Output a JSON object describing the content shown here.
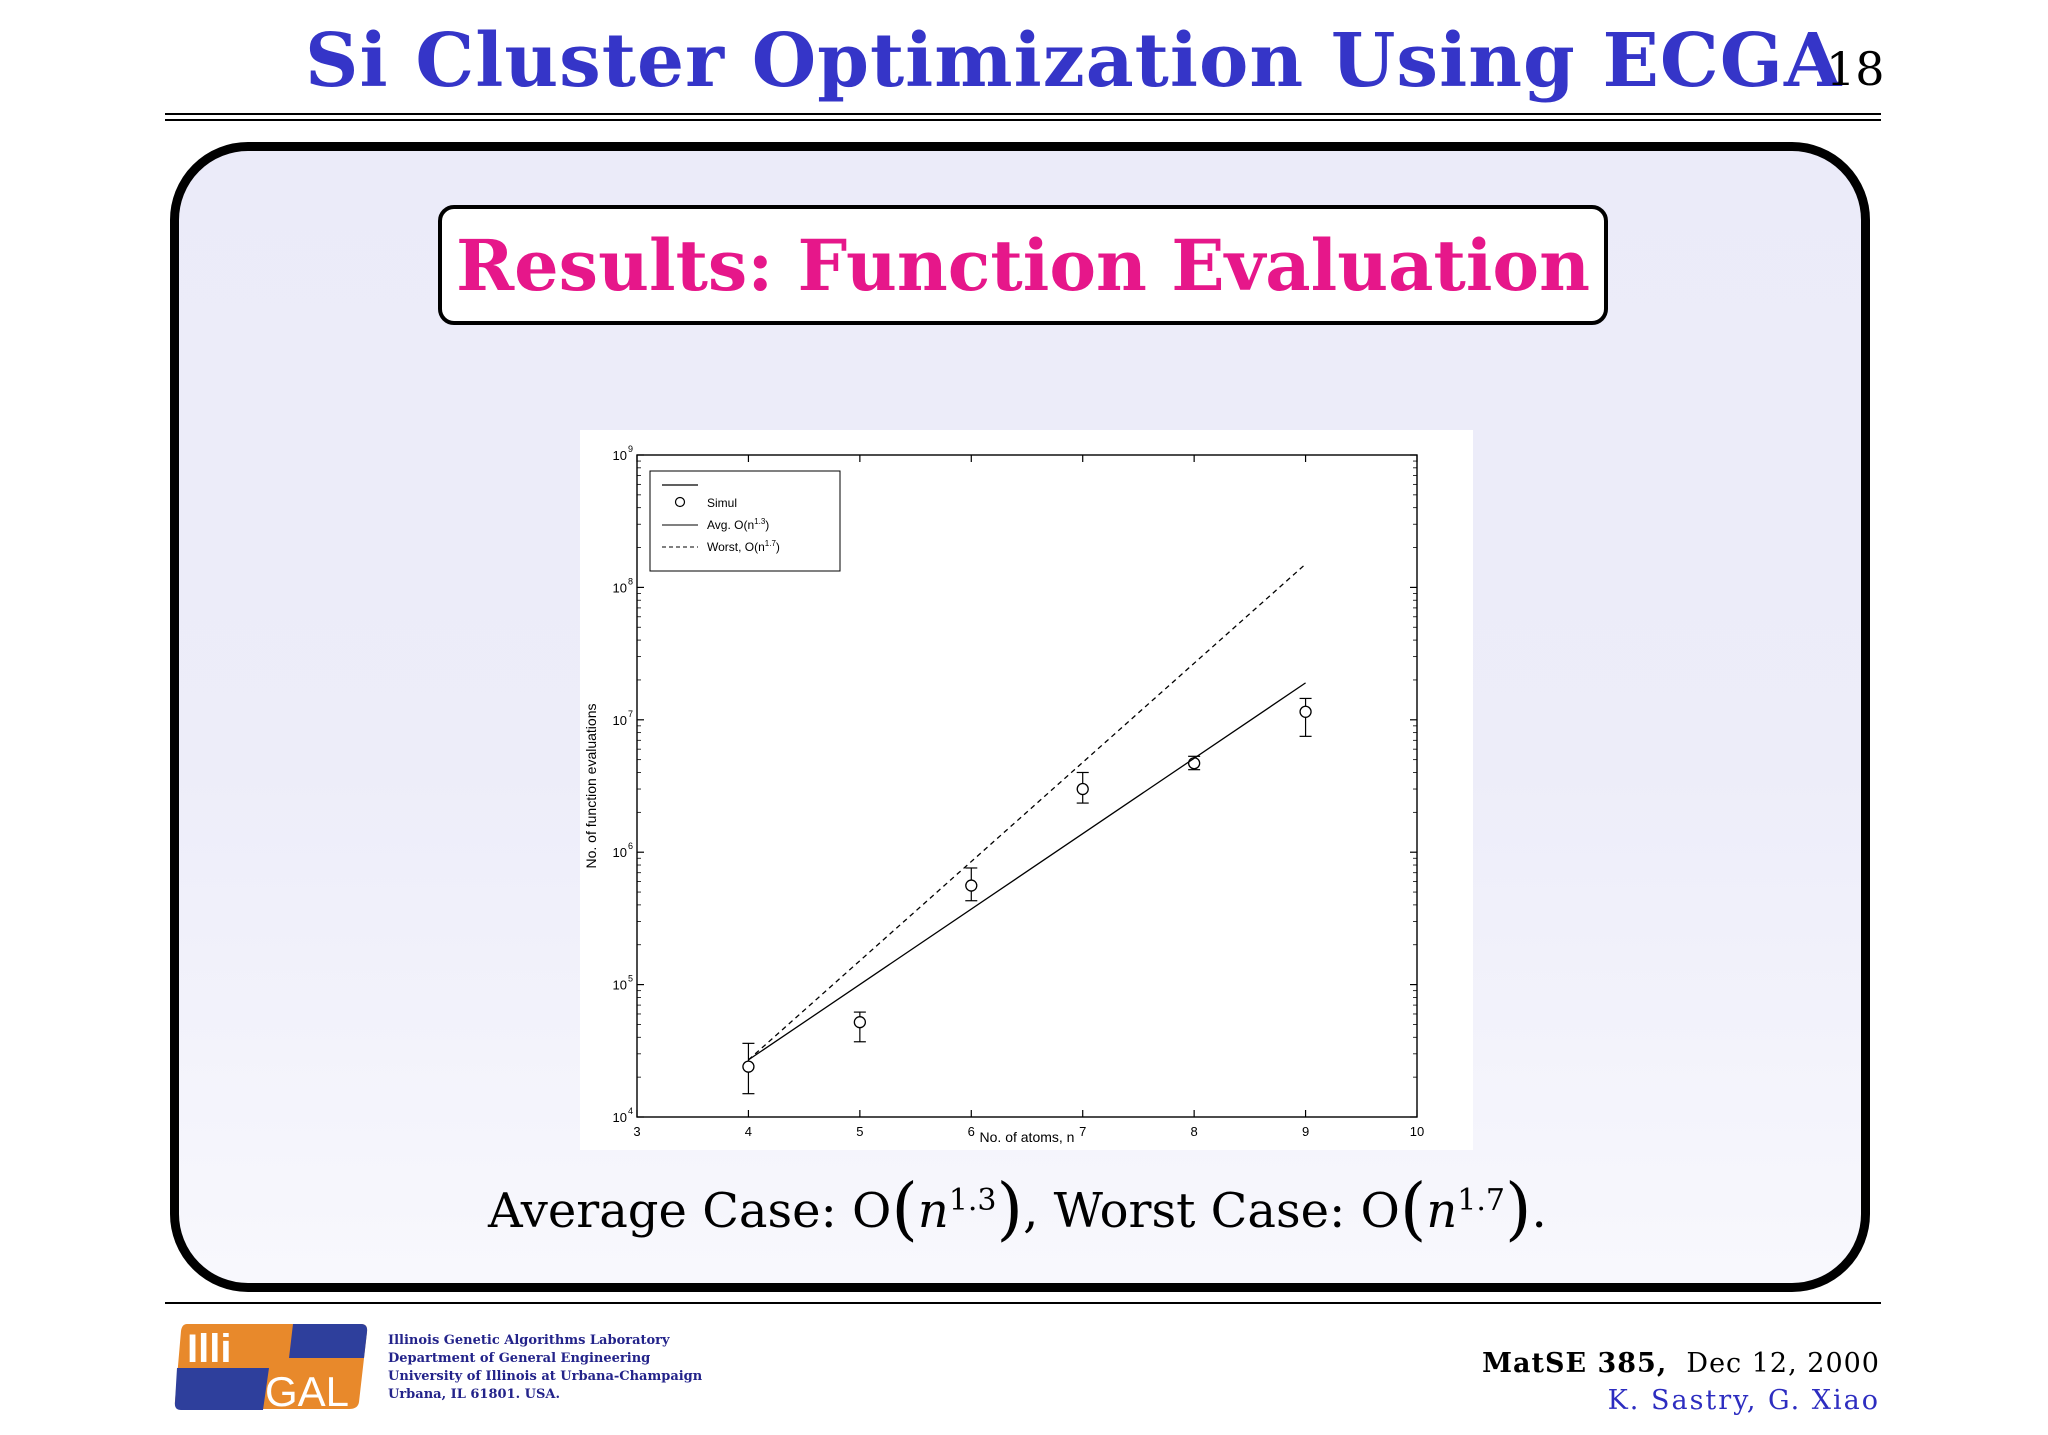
{
  "header": {
    "title": "Si Cluster Optimization Using ECGA",
    "page_number": "18"
  },
  "section": {
    "title": "Results: Function Evaluation"
  },
  "caption": {
    "prefix": "Average Case: O",
    "avg_var": "n",
    "avg_exp": "1.3",
    "middle": ", Worst Case: O",
    "worst_var": "n",
    "worst_exp": "1.7",
    "suffix": "."
  },
  "footer": {
    "logo_text_top": "Illi",
    "logo_text_bottom": "GAL",
    "lab_lines": [
      "Illinois Genetic Algorithms Laboratory",
      "Department of General Engineering",
      "University of Illinois at Urbana-Champaign",
      "Urbana, IL 61801. USA."
    ],
    "course": "MatSE 385,",
    "date": "Dec 12, 2000",
    "authors": "K. Sastry, G. Xiao"
  },
  "chart_data": {
    "type": "scatter",
    "xlabel": "No. of atoms, n",
    "ylabel": "No. of function evaluations",
    "xlim": [
      3,
      10
    ],
    "ylim": [
      10000,
      1000000000
    ],
    "yscale": "log",
    "xticks": [
      "3",
      "4",
      "5",
      "6",
      "7",
      "8",
      "9",
      "10"
    ],
    "yticks": [
      {
        "base": "10",
        "exp": "4"
      },
      {
        "base": "10",
        "exp": "5"
      },
      {
        "base": "10",
        "exp": "6"
      },
      {
        "base": "10",
        "exp": "7"
      },
      {
        "base": "10",
        "exp": "8"
      },
      {
        "base": "10",
        "exp": "9"
      }
    ],
    "grid": false,
    "legend_position": "top-left",
    "legend": [
      {
        "name": "Simul",
        "style": "marker"
      },
      {
        "name": "Avg. O(n",
        "exp": "1.3",
        "close": ")",
        "style": "solid"
      },
      {
        "name": "Worst, O(n",
        "exp": "1.7",
        "close": ")",
        "style": "dashed"
      }
    ],
    "series": [
      {
        "name": "Simul",
        "style": "circles-with-errorbars",
        "x": [
          4,
          5,
          6,
          7,
          8,
          9
        ],
        "y": [
          24000,
          52000,
          560000,
          3000000,
          4700000,
          11500000
        ],
        "err_low": [
          15000,
          37000,
          430000,
          2350000,
          4200000,
          7500000
        ],
        "err_high": [
          36000,
          62000,
          760000,
          4000000,
          5300000,
          14500000
        ]
      },
      {
        "name": "Avg. O(n^1.3)",
        "style": "solid",
        "x": [
          4,
          9
        ],
        "y": [
          27000,
          19000000
        ]
      },
      {
        "name": "Worst, O(n^1.7)",
        "style": "dashed",
        "x": [
          4,
          9
        ],
        "y": [
          27000,
          150000000
        ]
      }
    ]
  }
}
